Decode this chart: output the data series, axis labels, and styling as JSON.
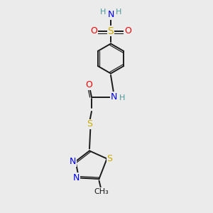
{
  "background_color": "#ebebeb",
  "figsize": [
    3.0,
    3.0
  ],
  "dpi": 100,
  "colors": {
    "C": "#1a1a1a",
    "H": "#4a9a9a",
    "N": "#0000ee",
    "O": "#ee0000",
    "S": "#ccaa00",
    "bond": "#1a1a1a"
  },
  "bond_lw": 1.4,
  "font_size": 9
}
